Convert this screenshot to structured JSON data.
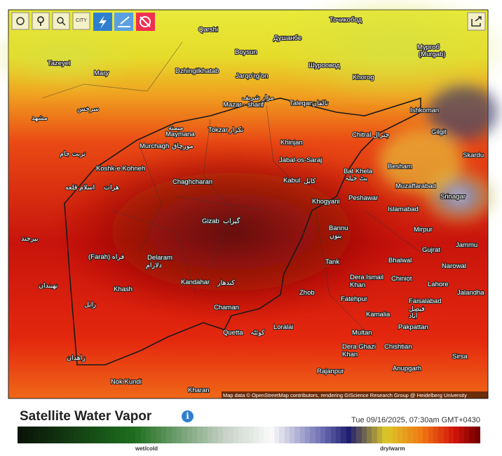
{
  "toolbar": {
    "city_button": "CITY"
  },
  "map": {
    "labels": [
      "Qarshi",
      "Boysun",
      "Душанбе",
      "Точикобод",
      "Tazeyel",
      "Mary",
      "Dzhingilkhatab",
      "Jarqo'rg'on",
      "Шуроовод",
      "Khorog",
      "Мургоб",
      "(Murgab)",
      "مزار شریف",
      "Mazar - sharif",
      "Taleqan",
      "تالقان",
      "Ishkoman",
      "Gilgit",
      "Chitral",
      "چترال",
      "Skardu",
      "Tokzar",
      "تکزار",
      "میمنه",
      "Maymana",
      "Murchagh",
      "مورچاق",
      "مشهد",
      "سرخس",
      "تربت جام",
      "Khinjan",
      "Jabal-os-Saraj",
      "Bat Khela",
      "بٹ خیلہ",
      "Besham",
      "Koshk-e Kohneh",
      "هرات",
      "اسلام قلعه",
      "Chaghcharan",
      "Kabul",
      "کابل",
      "Muzaffarabad",
      "Srinagar",
      "Khogyani",
      "Peshawar",
      "Islamabad",
      "Gizab",
      "گیزاب",
      "Mirpur",
      "Bannu",
      "بنوں",
      "بیرجند",
      "Jammu",
      "Gujrat",
      "(Farah) فراه",
      "Delaram",
      "دلارام",
      "Tank",
      "Bhalwal",
      "Narowal",
      "Dera Ismail",
      "Khan",
      "Chiniot",
      "Lahore",
      "Jalandha",
      "نهبندان",
      "Kandahar",
      "کندهار",
      "Khash",
      "Zhob",
      "Fatehpur",
      "Faisalabad",
      "فیصل",
      "آباد",
      "زابل",
      "Chaman",
      "Kamalia",
      "Loralai",
      "Pakpattan",
      "Quetta",
      "کوئٹہ",
      "Multan",
      "زاهدان",
      "Dera Ghazi",
      "Khan",
      "Chishtian",
      "Sirsa",
      "Anupgarh",
      "Rajanpur",
      "Nok Kundi",
      "Kharan"
    ],
    "attribution": "Map data © OpenStreetMap contributors, rendering GIScience Research Group @ Heidelberg University"
  },
  "footer": {
    "title": "Satellite Water Vapor",
    "timestamp": "Tue 09/16/2025, 07:30am GMT+0430",
    "legend": {
      "low": "wet/cold",
      "high": "dry/warm"
    }
  }
}
